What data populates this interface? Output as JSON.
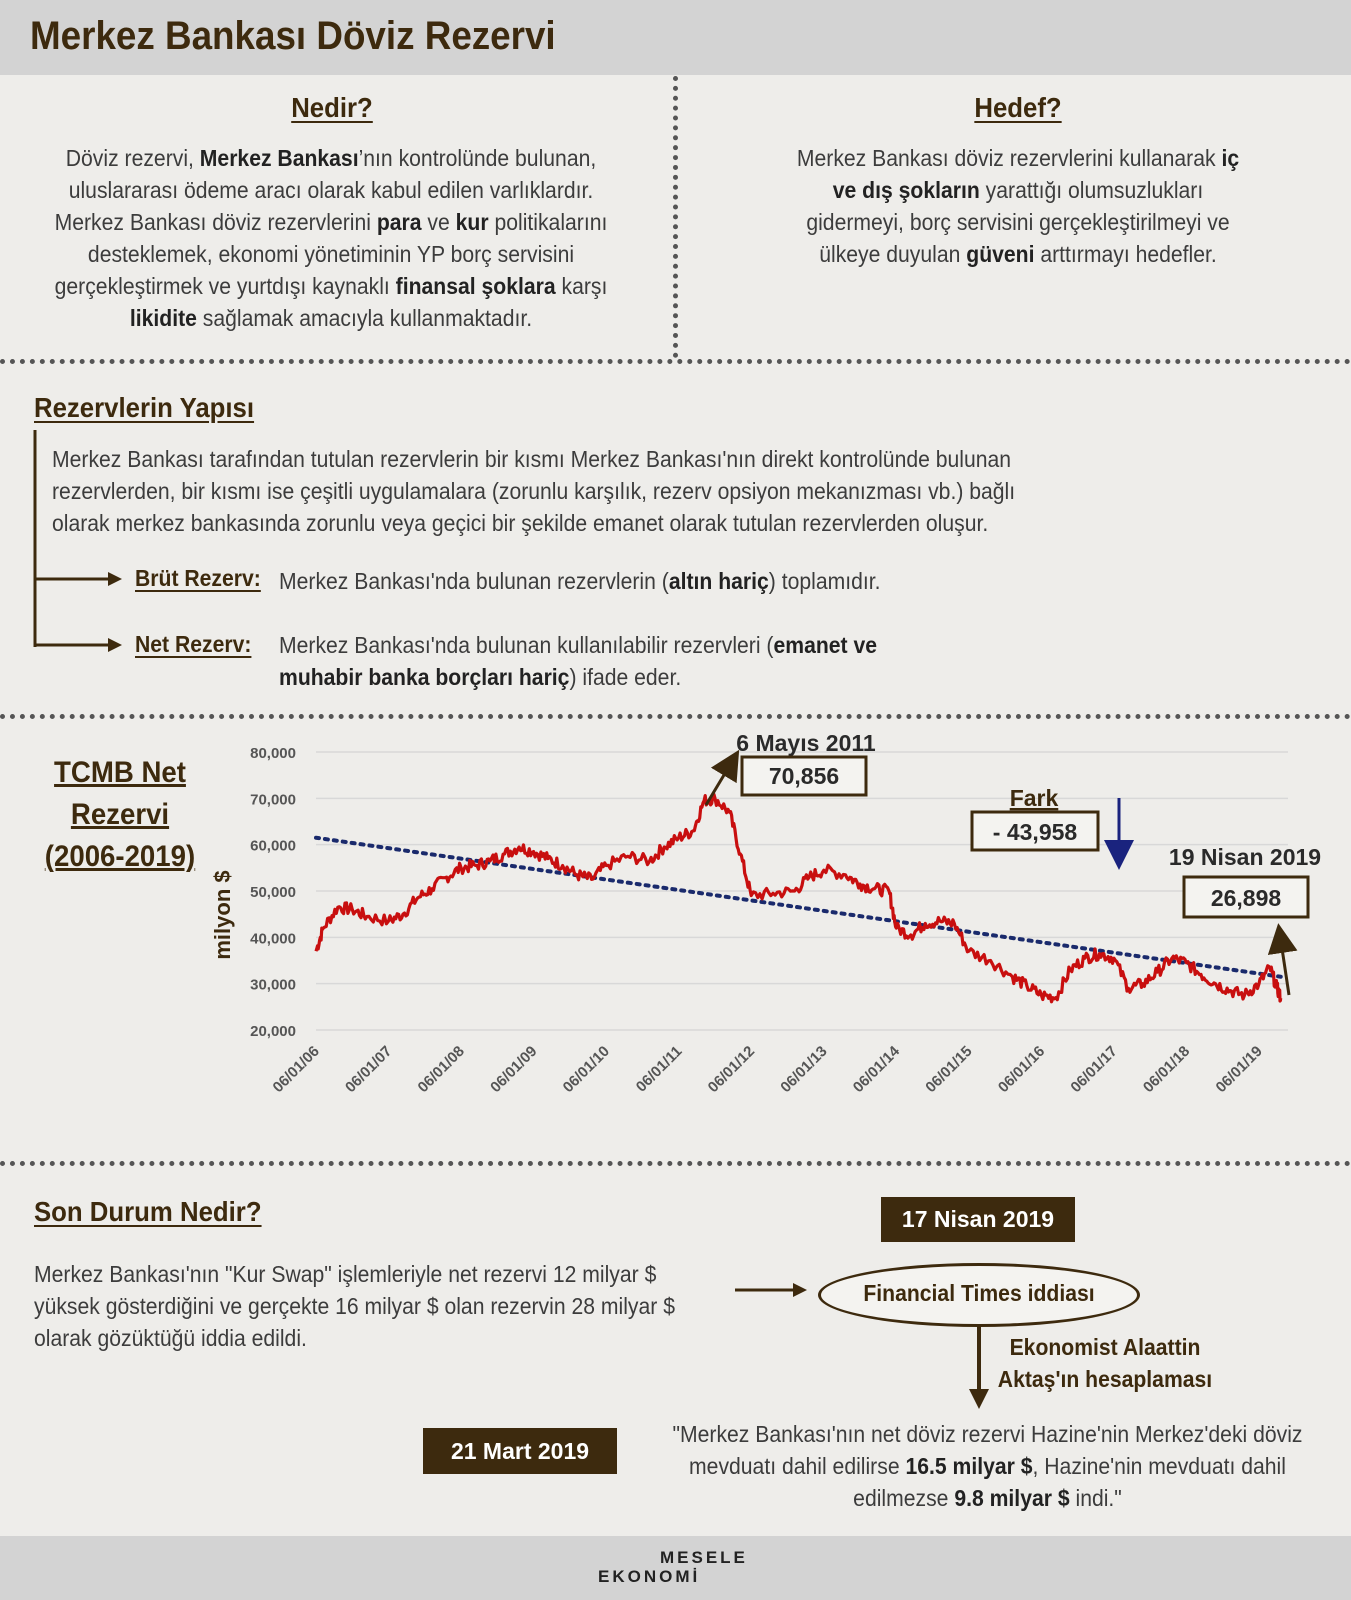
{
  "header": {
    "title": "Merkez Bankası Döviz Rezervi"
  },
  "nedir": {
    "heading": "Nedir?",
    "lines": [
      [
        "Döviz rezervi, ",
        "*Merkez Bankası",
        "’nın kontrolünde bulunan,"
      ],
      [
        "uluslararası ödeme aracı olarak kabul edilen varlıklardır."
      ],
      [
        "Merkez Bankası döviz rezervlerini ",
        "*para",
        " ve ",
        "*kur",
        " politikalarını"
      ],
      [
        "desteklemek, ekonomi yönetiminin YP borç servisini"
      ],
      [
        "gerçekleştirmek ve yurtdışı kaynaklı ",
        "*finansal şoklara",
        " karşı"
      ],
      [
        "*likidite",
        " sağlamak amacıyla kullanmaktadır."
      ]
    ]
  },
  "hedef": {
    "heading": "Hedef?",
    "lines": [
      [
        "Merkez Bankası döviz rezervlerini kullanarak ",
        "*iç"
      ],
      [
        "*ve dış şokların",
        " yarattığı olumsuzlukları"
      ],
      [
        "gidermeyi, borç servisini gerçekleştirilmeyi ve"
      ],
      [
        "ülkeye duyulan ",
        "*güveni",
        " arttırmayı hedefler."
      ]
    ]
  },
  "yapi": {
    "heading": "Rezervlerin Yapısı",
    "lines": [
      "Merkez Bankası tarafından tutulan rezervlerin bir kısmı Merkez Bankası'nın direkt kontrolünde bulunan",
      "rezervlerden, bir kısmı ise çeşitli uygulamalara (zorunlu karşılık, rezerv opsiyon mekanızması vb.) bağlı",
      "olarak merkez bankasında zorunlu veya geçici bir şekilde emanet olarak tutulan rezervlerden oluşur."
    ],
    "brut_label": "Brüt Rezerv:",
    "brut_text": [
      [
        "Merkez Bankası'nda bulunan rezervlerin (",
        "*altın hariç",
        ") toplamıdır."
      ]
    ],
    "net_label": "Net Rezerv:",
    "net_text": [
      [
        "Merkez Bankası'nda bulunan kullanılabilir rezervleri (",
        "*emanet ve"
      ],
      [
        "*muhabir banka borçları hariç",
        ") ifade eder."
      ]
    ]
  },
  "chart_side_title": [
    "TCMB Net",
    "Rezervi",
    "(2006-2019)"
  ],
  "chart_data": {
    "type": "line",
    "title": "TCMB Net Rezervi (2006-2019)",
    "ylabel": "milyon $",
    "ylim": [
      20000,
      80000
    ],
    "yticks": [
      "20,000",
      "30,000",
      "40,000",
      "50,000",
      "60,000",
      "70,000",
      "80,000"
    ],
    "xticks": [
      "06/01/06",
      "06/01/07",
      "06/01/08",
      "06/01/09",
      "06/01/10",
      "06/01/11",
      "06/01/12",
      "06/01/13",
      "06/01/14",
      "06/01/15",
      "06/01/16",
      "06/01/17",
      "06/01/18",
      "06/01/19"
    ],
    "series": [
      {
        "color": "#c80f0f",
        "points": [
          [
            2006.0,
            37000
          ],
          [
            2006.1,
            42000
          ],
          [
            2006.3,
            46500
          ],
          [
            2006.5,
            46000
          ],
          [
            2006.7,
            44500
          ],
          [
            2007.0,
            43500
          ],
          [
            2007.2,
            45000
          ],
          [
            2007.4,
            48500
          ],
          [
            2007.6,
            50500
          ],
          [
            2007.8,
            53000
          ],
          [
            2008.0,
            55000
          ],
          [
            2008.2,
            55500
          ],
          [
            2008.4,
            56500
          ],
          [
            2008.6,
            58000
          ],
          [
            2008.8,
            59500
          ],
          [
            2009.0,
            58500
          ],
          [
            2009.2,
            57000
          ],
          [
            2009.4,
            55500
          ],
          [
            2009.6,
            53500
          ],
          [
            2009.8,
            52500
          ],
          [
            2010.0,
            55500
          ],
          [
            2010.3,
            57500
          ],
          [
            2010.6,
            56500
          ],
          [
            2010.8,
            59500
          ],
          [
            2011.0,
            61500
          ],
          [
            2011.2,
            63000
          ],
          [
            2011.35,
            69500
          ],
          [
            2011.5,
            70000
          ],
          [
            2011.7,
            67000
          ],
          [
            2011.85,
            58000
          ],
          [
            2012.0,
            49000
          ],
          [
            2012.3,
            49500
          ],
          [
            2012.6,
            50000
          ],
          [
            2012.8,
            53000
          ],
          [
            2013.0,
            54500
          ],
          [
            2013.3,
            53500
          ],
          [
            2013.5,
            51500
          ],
          [
            2013.7,
            50500
          ],
          [
            2013.9,
            50000
          ],
          [
            2014.0,
            42000
          ],
          [
            2014.2,
            40500
          ],
          [
            2014.4,
            43000
          ],
          [
            2014.6,
            43500
          ],
          [
            2014.8,
            43000
          ],
          [
            2015.0,
            37000
          ],
          [
            2015.3,
            35000
          ],
          [
            2015.6,
            31500
          ],
          [
            2015.8,
            29500
          ],
          [
            2016.0,
            27500
          ],
          [
            2016.2,
            27000
          ],
          [
            2016.4,
            33000
          ],
          [
            2016.6,
            35500
          ],
          [
            2016.8,
            36500
          ],
          [
            2017.0,
            35500
          ],
          [
            2017.2,
            29000
          ],
          [
            2017.4,
            30000
          ],
          [
            2017.6,
            32500
          ],
          [
            2017.8,
            35500
          ],
          [
            2018.0,
            34500
          ],
          [
            2018.2,
            32000
          ],
          [
            2018.4,
            30000
          ],
          [
            2018.6,
            28500
          ],
          [
            2018.8,
            27500
          ],
          [
            2019.0,
            30000
          ],
          [
            2019.15,
            33500
          ],
          [
            2019.25,
            29000
          ],
          [
            2019.3,
            26898
          ]
        ]
      }
    ],
    "trendline": {
      "color": "#1a2a6c",
      "points": [
        [
          2006.0,
          61500
        ],
        [
          2019.3,
          31500
        ]
      ]
    },
    "annotations": {
      "peak": {
        "date": "6 Mayıs 2011",
        "value": "70,856"
      },
      "diff": {
        "label": "Fark",
        "value": "- 43,958"
      },
      "last": {
        "date": "19 Nisan 2019",
        "value": "26,898"
      }
    }
  },
  "son_durum": {
    "heading": "Son Durum Nedir?",
    "lines": [
      "Merkez Bankası'nın \"Kur Swap\" işlemleriyle net rezervi 12 milyar $",
      "yüksek gösterdiğini ve gerçekte 16 milyar $ olan rezervin 28 milyar $",
      "olarak gözüktüğü iddia edildi."
    ],
    "date1": "17 Nisan 2019",
    "ft": "Financial Times iddiası",
    "aktas": [
      "Ekonomist Alaattin",
      "Aktaş'ın hesaplaması"
    ],
    "date2": "21 Mart 2019",
    "quote": [
      [
        "\"Merkez Bankası'nın net döviz rezervi Hazine'nin Merkez'deki döviz"
      ],
      [
        "mevduatı dahil edilirse ",
        "*16.5 milyar $",
        ", Hazine'nin mevduatı dahil"
      ],
      [
        "edilmezse ",
        "*9.8 milyar $",
        " indi.\""
      ]
    ]
  },
  "footer": {
    "logo_top": "MESELE",
    "logo_bottom": "EKONOMİ"
  },
  "colors": {
    "brand": "#3d2a0e",
    "line": "#c80f0f",
    "trend": "#1a2a6c",
    "diff_arrow": "#1a237e"
  }
}
